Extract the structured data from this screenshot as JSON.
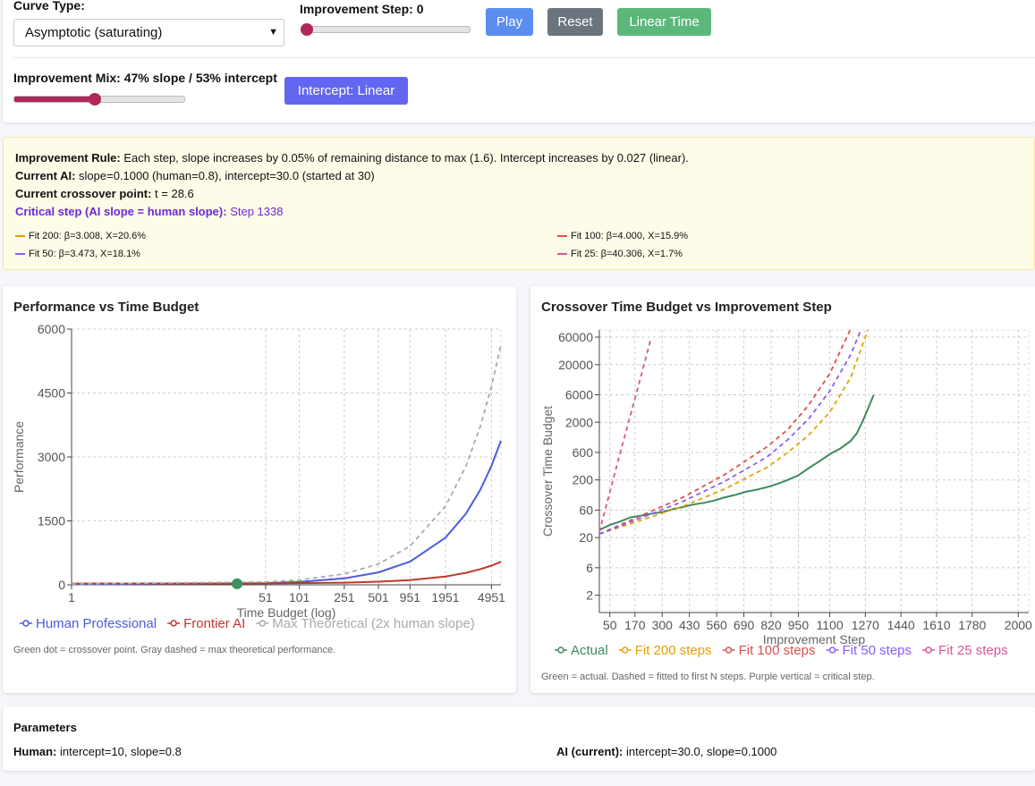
{
  "controls": {
    "curve_type_label": "Curve Type:",
    "curve_type_value": "Asymptotic (saturating)",
    "step_label": "Improvement Step: 0",
    "buttons": [
      "Play",
      "Reset",
      "Linear Time"
    ],
    "mix_label": "Improvement Mix: 47% slope / 53% intercept",
    "intercept_button": "Intercept: Linear"
  },
  "info": {
    "rule_label": "Improvement Rule:",
    "rule_text": " Each step, slope increases by 0.05% of remaining distance to max (1.6). Intercept increases by 0.027 (linear).",
    "ai_label": "Current AI:",
    "ai_text": " slope=0.1000 (human=0.8), intercept=30.0 (started at 30)",
    "cross_label": "Current crossover point:",
    "cross_text": " t = 28.6",
    "critical_label": "Critical step (AI slope = human slope):",
    "critical_text": " Step 1338",
    "fits": [
      {
        "text": "Fit 200: β=3.008, X=20.6%",
        "color": "#e5a100"
      },
      {
        "text": "Fit 100: β=4.000, X=15.9%",
        "color": "#d9534f"
      },
      {
        "text": "Fit 50: β=3.473, X=18.1%",
        "color": "#8b5cf6"
      },
      {
        "text": "Fit 25: β=40.306, X=1.7%",
        "color": "#d6569a"
      }
    ]
  },
  "chart_data": [
    {
      "type": "line",
      "title": "Performance vs Time Budget",
      "x_label": "Time Budget (log)",
      "y_label": "Performance",
      "xscale": "log",
      "xlim": [
        1,
        6000
      ],
      "xticks": [
        1,
        51,
        101,
        251,
        501,
        951,
        1951,
        4951
      ],
      "ylim": [
        0,
        6000
      ],
      "yticks": [
        0,
        1500,
        3000,
        4500,
        6000
      ],
      "grid": true,
      "series": [
        {
          "name": "Human Professional",
          "color": "#4a5bdc",
          "x": [
            1,
            51,
            101,
            251,
            501,
            951,
            1951,
            2951,
            3951,
            4951,
            6000
          ],
          "values": [
            11,
            39,
            67,
            151,
            291,
            544,
            1105,
            1667,
            2229,
            2790,
            3379
          ]
        },
        {
          "name": "Frontier AI",
          "color": "#c0392b",
          "x": [
            1,
            51,
            101,
            251,
            501,
            951,
            1951,
            2951,
            3951,
            4951,
            6000
          ],
          "values": [
            30,
            34,
            39,
            51,
            73,
            111,
            196,
            281,
            366,
            451,
            540
          ]
        },
        {
          "name": "Max Theoretical (2x human slope)",
          "color": "#aaaaaa",
          "dash": true,
          "x": [
            1,
            51,
            101,
            251,
            501,
            951,
            1951,
            2951,
            3951,
            4951,
            6000
          ],
          "values": [
            21,
            68,
            114,
            255,
            488,
            909,
            1844,
            2779,
            3714,
            4649,
            5630
          ]
        }
      ],
      "crossover": {
        "x": 28.6,
        "y": 24,
        "color": "#3f8f5f"
      },
      "note": "Green dot = crossover point. Gray dashed = max theoretical performance."
    },
    {
      "type": "line",
      "title": "Crossover Time Budget vs Improvement Step",
      "x_label": "Improvement Step",
      "y_label": "Crossover Time Budget",
      "yscale": "log",
      "xlim": [
        0,
        2050
      ],
      "xticks": [
        50,
        170,
        300,
        430,
        560,
        690,
        820,
        950,
        1100,
        1270,
        1440,
        1610,
        1780,
        2000
      ],
      "ylim": [
        1,
        80000
      ],
      "yticks": [
        2,
        6,
        20,
        60,
        200,
        600,
        2000,
        6000,
        20000,
        60000
      ],
      "grid": true,
      "series": [
        {
          "name": "Actual",
          "color": "#3d8b5e",
          "x": [
            0,
            50,
            100,
            150,
            200,
            250,
            300,
            350,
            400,
            450,
            500,
            550,
            600,
            650,
            700,
            750,
            800,
            850,
            900,
            950,
            1000,
            1050,
            1100,
            1150,
            1200,
            1230,
            1260,
            1290,
            1310
          ],
          "values": [
            27,
            33,
            38,
            45,
            48,
            52,
            55,
            62,
            68,
            75,
            80,
            88,
            100,
            110,
            125,
            135,
            150,
            170,
            200,
            240,
            320,
            420,
            560,
            700,
            950,
            1300,
            2200,
            4000,
            6000
          ]
        },
        {
          "name": "Fit 200 steps",
          "color": "#e5a100",
          "dash": true,
          "x": [
            0,
            200,
            400,
            600,
            800,
            900,
            1000,
            1100,
            1200,
            1282
          ],
          "values": [
            23,
            40,
            70,
            140,
            330,
            600,
            1200,
            3000,
            12000,
            80000
          ]
        },
        {
          "name": "Fit 100 steps",
          "color": "#d9534f",
          "dash": true,
          "x": [
            0,
            200,
            400,
            600,
            800,
            900,
            1000,
            1100,
            1197
          ],
          "values": [
            23,
            48,
            100,
            250,
            750,
            1500,
            4000,
            14000,
            80000
          ]
        },
        {
          "name": "Fit 50 steps",
          "color": "#8b5cf6",
          "dash": true,
          "x": [
            0,
            200,
            400,
            600,
            800,
            900,
            1000,
            1100,
            1200,
            1249
          ],
          "values": [
            23,
            44,
            85,
            190,
            500,
            1000,
            2300,
            7000,
            30000,
            80000
          ]
        },
        {
          "name": "Fit 25 steps",
          "color": "#d6569a",
          "dash": true,
          "x": [
            0,
            100,
            200,
            245
          ],
          "values": [
            25,
            600,
            13000,
            55000
          ]
        }
      ],
      "note": "Green = actual. Dashed = fitted to first N steps. Purple vertical = critical step."
    }
  ],
  "parameters": {
    "title": "Parameters",
    "human_label": "Human:",
    "human_text": " intercept=10, slope=0.8",
    "ai_label": "AI (current):",
    "ai_text": " intercept=30.0, slope=0.1000"
  }
}
